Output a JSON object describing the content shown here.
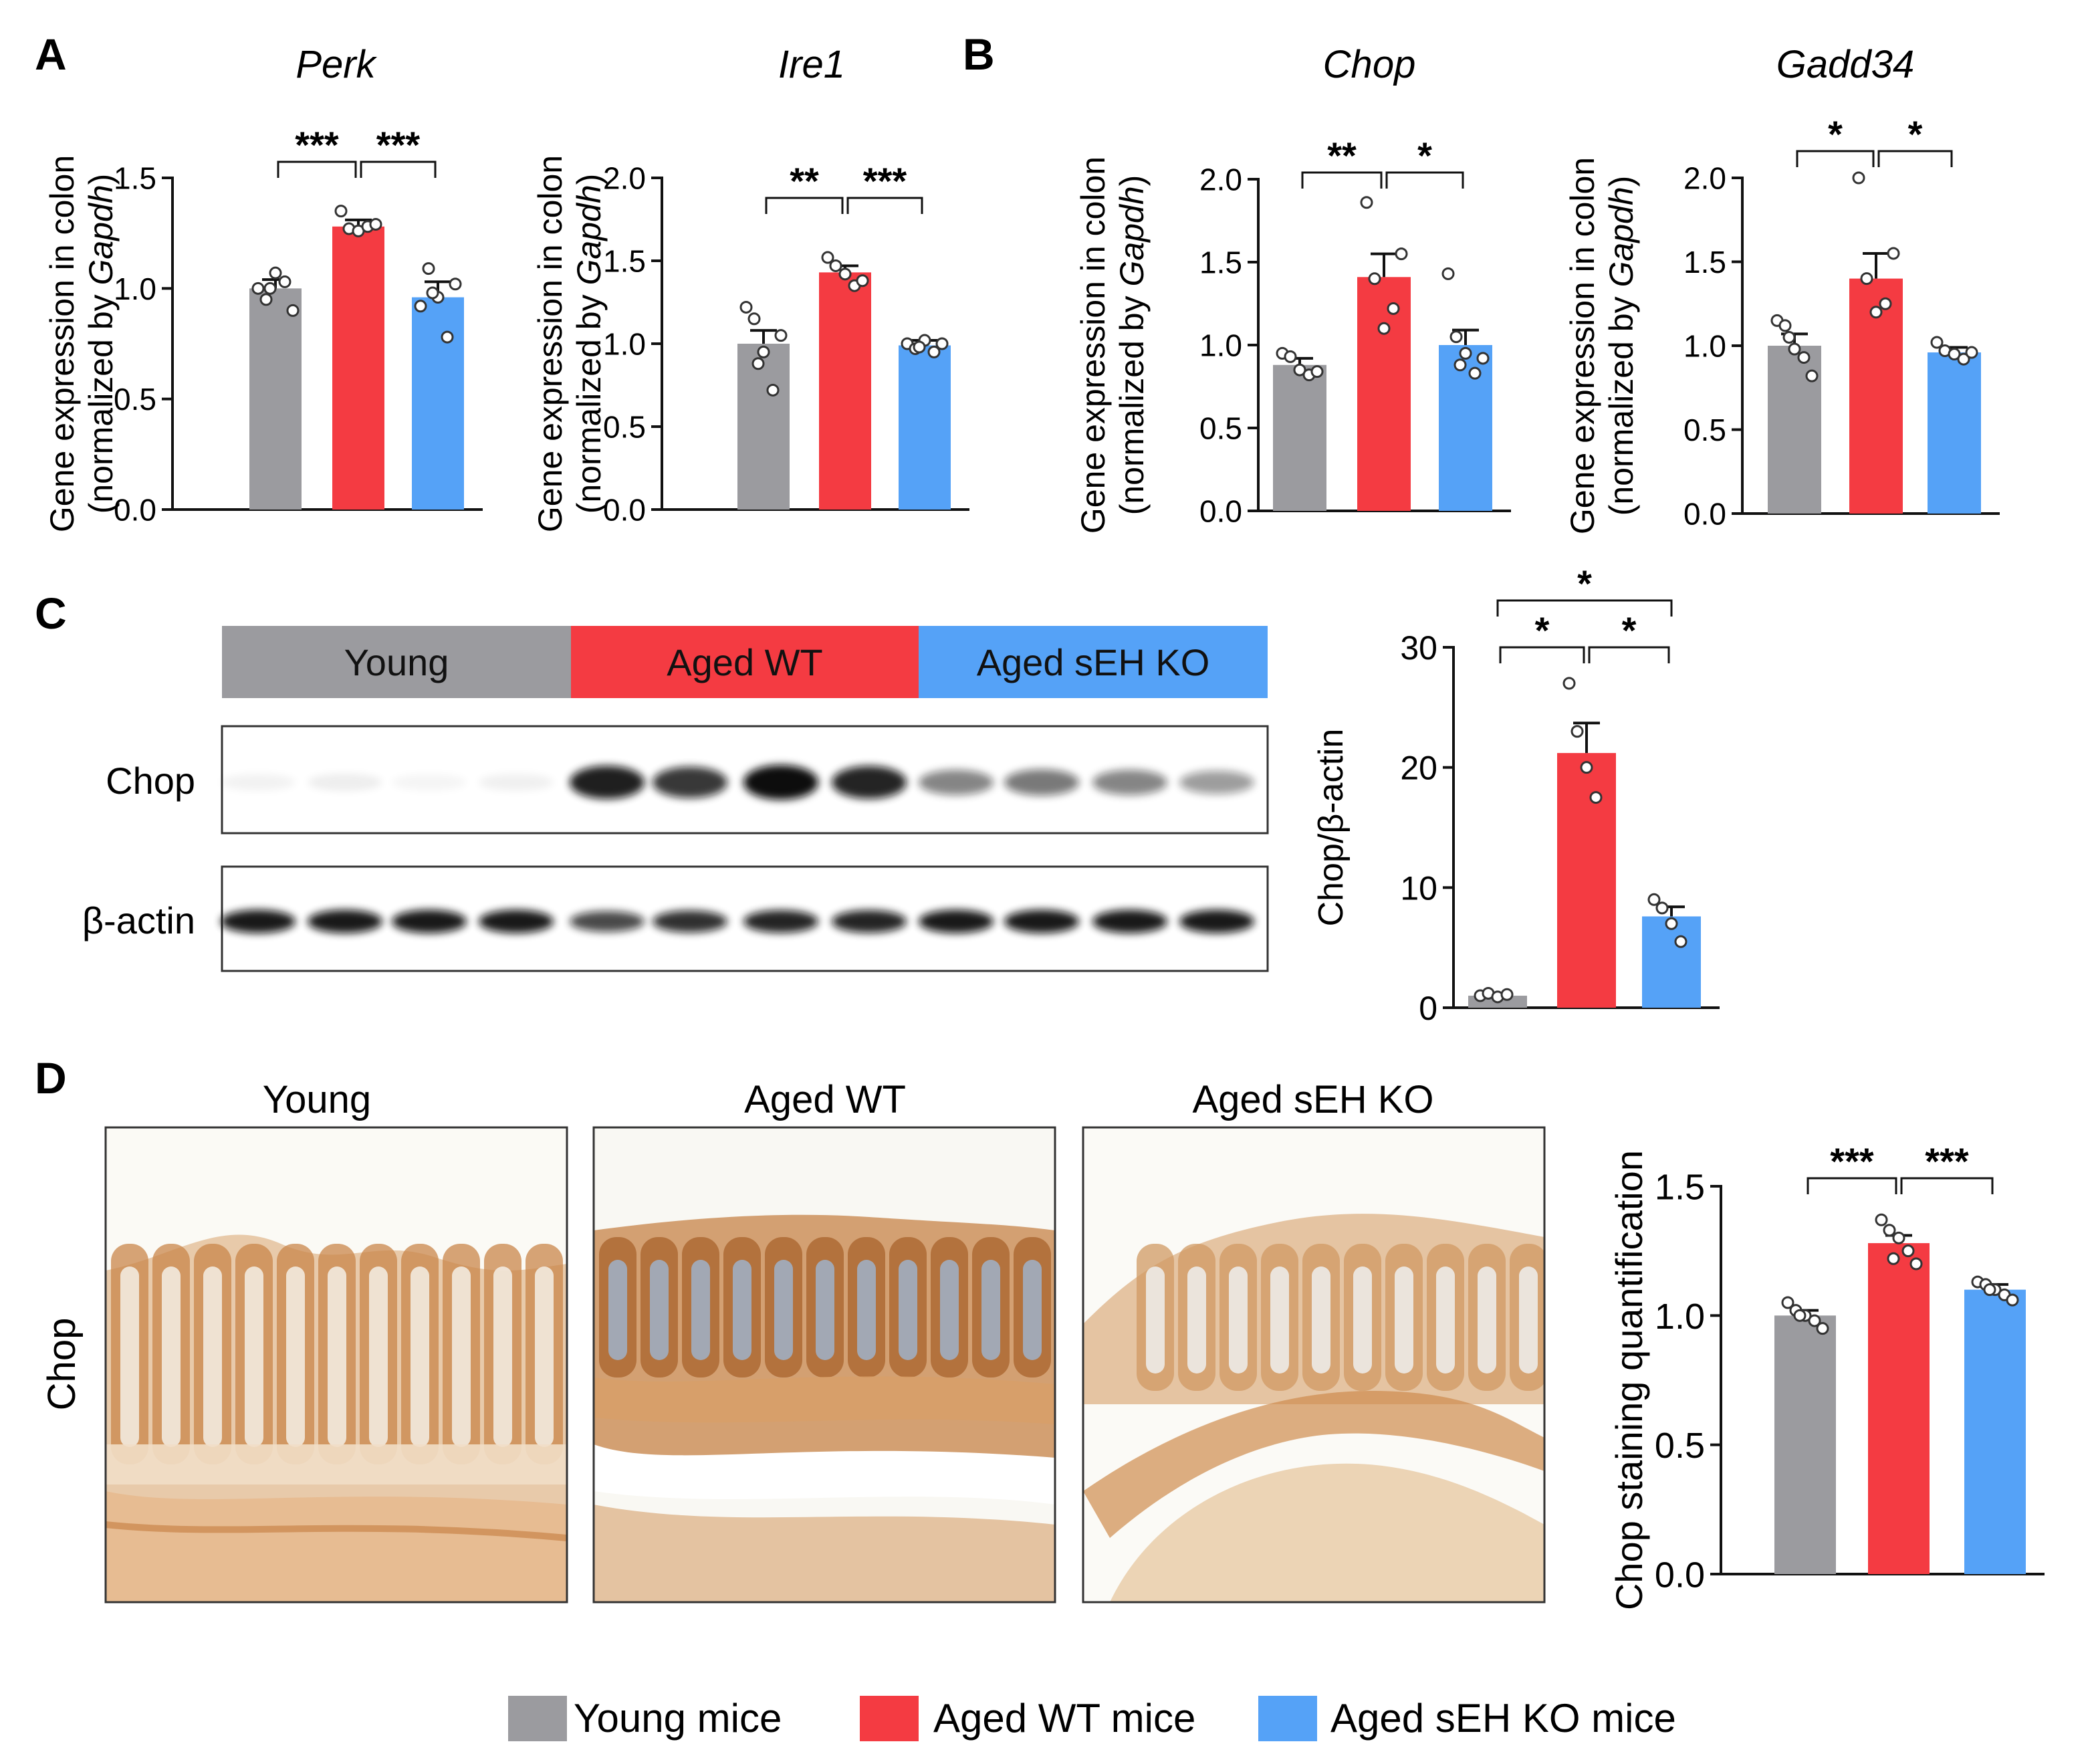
{
  "colors": {
    "young": "#9b9b9f",
    "aged_wt": "#f43b42",
    "aged_ko": "#55a2f7",
    "tissue": "#c57c3e",
    "blot_bg": "#ffffff"
  },
  "panels": {
    "A": "A",
    "B": "B",
    "C": "C",
    "D": "D"
  },
  "western": {
    "groups": [
      "Young",
      "Aged WT",
      "Aged sEH KO"
    ],
    "rows": [
      "Chop",
      "β-actin"
    ],
    "chop_band_intensity": [
      0.05,
      0.07,
      0.04,
      0.06,
      0.92,
      0.82,
      1.0,
      0.9,
      0.5,
      0.55,
      0.5,
      0.4
    ],
    "actin_band_intensity": [
      0.95,
      0.95,
      0.95,
      0.95,
      0.75,
      0.85,
      0.9,
      0.9,
      0.95,
      0.95,
      0.95,
      0.95
    ]
  },
  "histology": {
    "row_label": "Chop",
    "titles": [
      "Young",
      "Aged WT",
      "Aged sEH KO"
    ]
  },
  "legend": {
    "items": [
      {
        "label": "Young mice",
        "color": "#9b9b9f"
      },
      {
        "label": "Aged WT mice",
        "color": "#f43b42"
      },
      {
        "label": "Aged sEH KO mice",
        "color": "#55a2f7"
      }
    ]
  },
  "chart_data": [
    {
      "id": "perk",
      "type": "bar",
      "title": "Perk",
      "title_italic": true,
      "ylabel_line1": "Gene expression in colon",
      "ylabel_line2_prefix": "(normalized by ",
      "ylabel_line2_gene": "Gapdh",
      "ylabel_line2_suffix": ")",
      "ylim": [
        0,
        1.5
      ],
      "yticks": [
        "0.0",
        "0.5",
        "1.0",
        "1.5"
      ],
      "categories": [
        "Young mice",
        "Aged WT mice",
        "Aged sEH KO mice"
      ],
      "values": [
        1.0,
        1.28,
        0.96
      ],
      "errors": [
        0.04,
        0.03,
        0.07
      ],
      "points": [
        [
          1.0,
          0.95,
          1.07,
          1.03,
          0.9,
          1.0
        ],
        [
          1.35,
          1.27,
          1.26,
          1.28,
          1.29
        ],
        [
          0.92,
          1.09,
          0.96,
          0.78,
          1.02,
          0.98
        ]
      ],
      "significance": [
        {
          "from": 0,
          "to": 1,
          "label": "***"
        },
        {
          "from": 1,
          "to": 2,
          "label": "***"
        }
      ]
    },
    {
      "id": "ire1",
      "type": "bar",
      "title": "Ire1",
      "title_italic": true,
      "ylabel_line1": "Gene expression in colon",
      "ylabel_line2_prefix": "(normalized by ",
      "ylabel_line2_gene": "Gapdh",
      "ylabel_line2_suffix": ")",
      "ylim": [
        0,
        2.0
      ],
      "yticks": [
        "0.0",
        "0.5",
        "1.0",
        "1.5",
        "2.0"
      ],
      "categories": [
        "Young mice",
        "Aged WT mice",
        "Aged sEH KO mice"
      ],
      "values": [
        1.0,
        1.43,
        0.99
      ],
      "errors": [
        0.08,
        0.04,
        0.03
      ],
      "points": [
        [
          1.22,
          1.15,
          0.95,
          0.72,
          1.05,
          0.88
        ],
        [
          1.52,
          1.47,
          1.42,
          1.35,
          1.38
        ],
        [
          1.0,
          0.97,
          1.02,
          0.95,
          1.0,
          0.98
        ]
      ],
      "significance": [
        {
          "from": 0,
          "to": 1,
          "label": "**"
        },
        {
          "from": 1,
          "to": 2,
          "label": "***"
        }
      ]
    },
    {
      "id": "chop",
      "type": "bar",
      "title": "Chop",
      "title_italic": true,
      "ylabel_line1": "Gene expression in colon",
      "ylabel_line2_prefix": "(normalized by ",
      "ylabel_line2_gene": "Gapdh",
      "ylabel_line2_suffix": ")",
      "ylim": [
        0,
        2.0
      ],
      "yticks": [
        "0.0",
        "0.5",
        "1.0",
        "1.5",
        "2.0"
      ],
      "categories": [
        "Young mice",
        "Aged WT mice",
        "Aged sEH KO mice"
      ],
      "values": [
        0.88,
        1.41,
        1.0
      ],
      "errors": [
        0.04,
        0.14,
        0.09
      ],
      "points": [
        [
          0.95,
          0.93,
          0.85,
          0.82,
          0.84
        ],
        [
          1.86,
          1.4,
          1.1,
          1.22,
          1.55
        ],
        [
          1.43,
          1.05,
          0.95,
          0.83,
          0.92,
          0.88
        ]
      ],
      "significance": [
        {
          "from": 0,
          "to": 1,
          "label": "**"
        },
        {
          "from": 1,
          "to": 2,
          "label": "*"
        }
      ]
    },
    {
      "id": "gadd34",
      "type": "bar",
      "title": "Gadd34",
      "title_italic": true,
      "ylabel_line1": "Gene expression in colon",
      "ylabel_line2_prefix": "(normalized by ",
      "ylabel_line2_gene": "Gapdh",
      "ylabel_line2_suffix": ")",
      "ylim": [
        0,
        2.0
      ],
      "yticks": [
        "0.0",
        "0.5",
        "1.0",
        "1.5",
        "2.0"
      ],
      "categories": [
        "Young mice",
        "Aged WT mice",
        "Aged sEH KO mice"
      ],
      "values": [
        1.0,
        1.4,
        0.96
      ],
      "errors": [
        0.07,
        0.15,
        0.03
      ],
      "points": [
        [
          1.15,
          1.12,
          0.98,
          0.93,
          0.82,
          1.05
        ],
        [
          2.0,
          1.4,
          1.2,
          1.25,
          1.55
        ],
        [
          1.02,
          0.97,
          0.95,
          0.92,
          0.96
        ]
      ],
      "significance": [
        {
          "from": 0,
          "to": 1,
          "label": "*"
        },
        {
          "from": 1,
          "to": 2,
          "label": "*"
        }
      ]
    },
    {
      "id": "chop-actin",
      "type": "bar",
      "title": "",
      "ylabel": "Chop/β-actin",
      "ylim": [
        0,
        30
      ],
      "yticks": [
        "0",
        "10",
        "20",
        "30"
      ],
      "categories": [
        "Young mice",
        "Aged WT mice",
        "Aged sEH KO mice"
      ],
      "values": [
        1.0,
        21.2,
        7.6
      ],
      "errors": [
        0.2,
        2.5,
        0.8
      ],
      "points": [
        [
          1.0,
          1.2,
          0.9,
          1.1
        ],
        [
          27.0,
          23.0,
          20.0,
          17.5
        ],
        [
          9.0,
          8.3,
          7.0,
          5.5
        ]
      ],
      "significance": [
        {
          "from": 0,
          "to": 1,
          "label": "*"
        },
        {
          "from": 1,
          "to": 2,
          "label": "*"
        },
        {
          "from": 0,
          "to": 2,
          "label": "*"
        }
      ]
    },
    {
      "id": "chop-staining",
      "type": "bar",
      "title": "",
      "ylabel": "Chop staining quantification",
      "ylim": [
        0,
        1.5
      ],
      "yticks": [
        "0.0",
        "0.5",
        "1.0",
        "1.5"
      ],
      "categories": [
        "Young mice",
        "Aged WT mice",
        "Aged sEH KO mice"
      ],
      "values": [
        1.0,
        1.28,
        1.1
      ],
      "errors": [
        0.02,
        0.03,
        0.02
      ],
      "points": [
        [
          1.05,
          1.02,
          1.0,
          0.98,
          0.95,
          1.0
        ],
        [
          1.37,
          1.33,
          1.3,
          1.25,
          1.2,
          1.22
        ],
        [
          1.13,
          1.12,
          1.1,
          1.08,
          1.06,
          1.1
        ]
      ],
      "significance": [
        {
          "from": 0,
          "to": 1,
          "label": "***"
        },
        {
          "from": 1,
          "to": 2,
          "label": "***"
        }
      ]
    }
  ]
}
